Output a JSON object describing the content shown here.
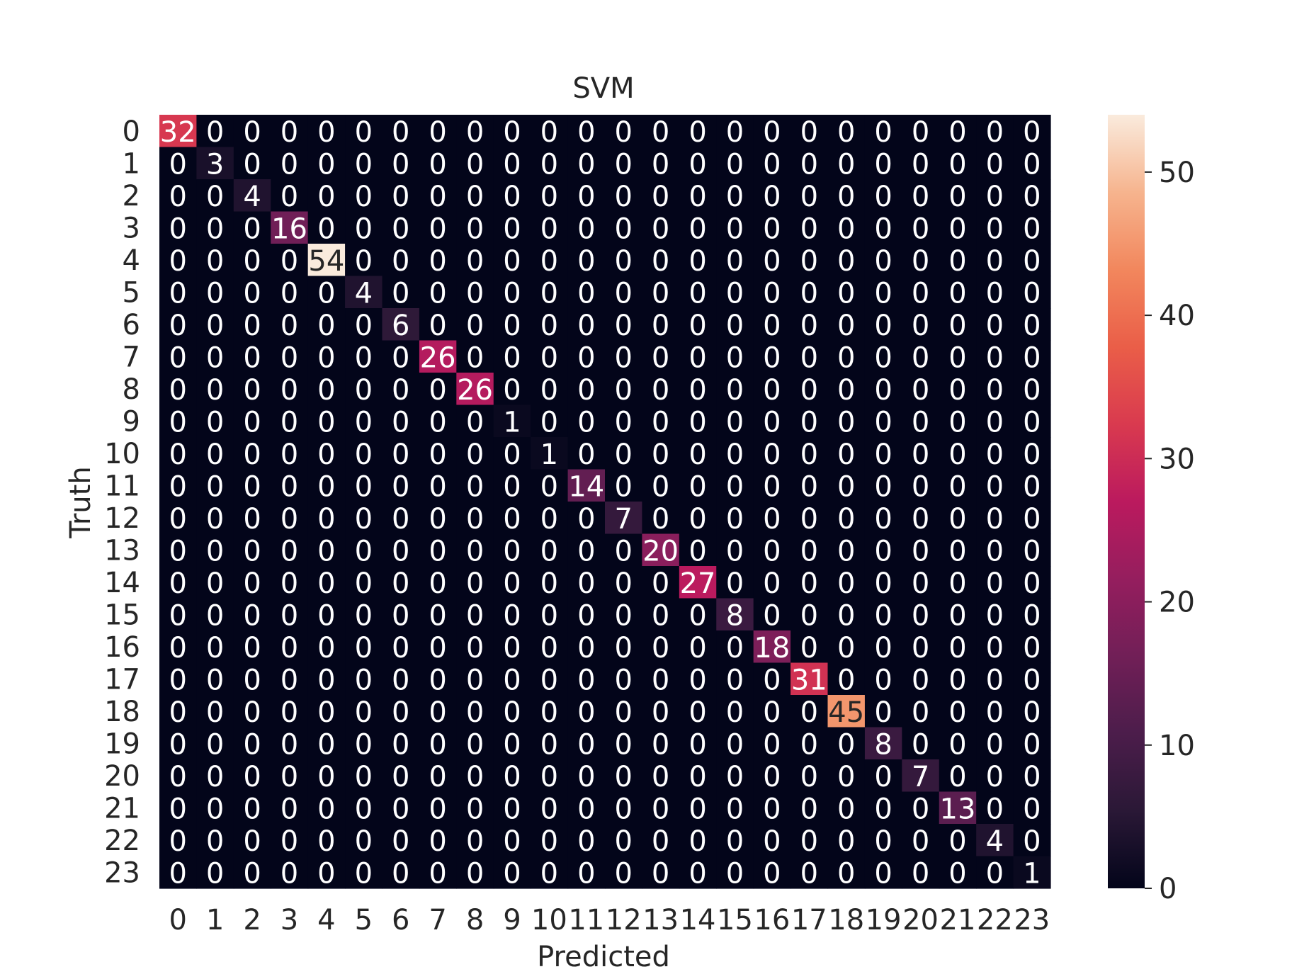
{
  "chart_data": {
    "type": "heatmap",
    "title": "SVM",
    "xlabel": "Predicted",
    "ylabel": "Truth",
    "x_ticks": [
      "0",
      "1",
      "2",
      "3",
      "4",
      "5",
      "6",
      "7",
      "8",
      "9",
      "10",
      "11",
      "12",
      "13",
      "14",
      "15",
      "16",
      "17",
      "18",
      "19",
      "20",
      "21",
      "22",
      "23"
    ],
    "y_ticks": [
      "0",
      "1",
      "2",
      "3",
      "4",
      "5",
      "6",
      "7",
      "8",
      "9",
      "10",
      "11",
      "12",
      "13",
      "14",
      "15",
      "16",
      "17",
      "18",
      "19",
      "20",
      "21",
      "22",
      "23"
    ],
    "diagonal": [
      32,
      3,
      4,
      16,
      54,
      4,
      6,
      26,
      26,
      1,
      1,
      14,
      7,
      20,
      27,
      8,
      18,
      31,
      45,
      8,
      7,
      13,
      4,
      1
    ],
    "off_diagonal_value": 0,
    "colorbar": {
      "colormap": "rocket",
      "range": [
        0,
        54
      ],
      "ticks": [
        0,
        10,
        20,
        30,
        40,
        50
      ]
    },
    "grid": false
  }
}
